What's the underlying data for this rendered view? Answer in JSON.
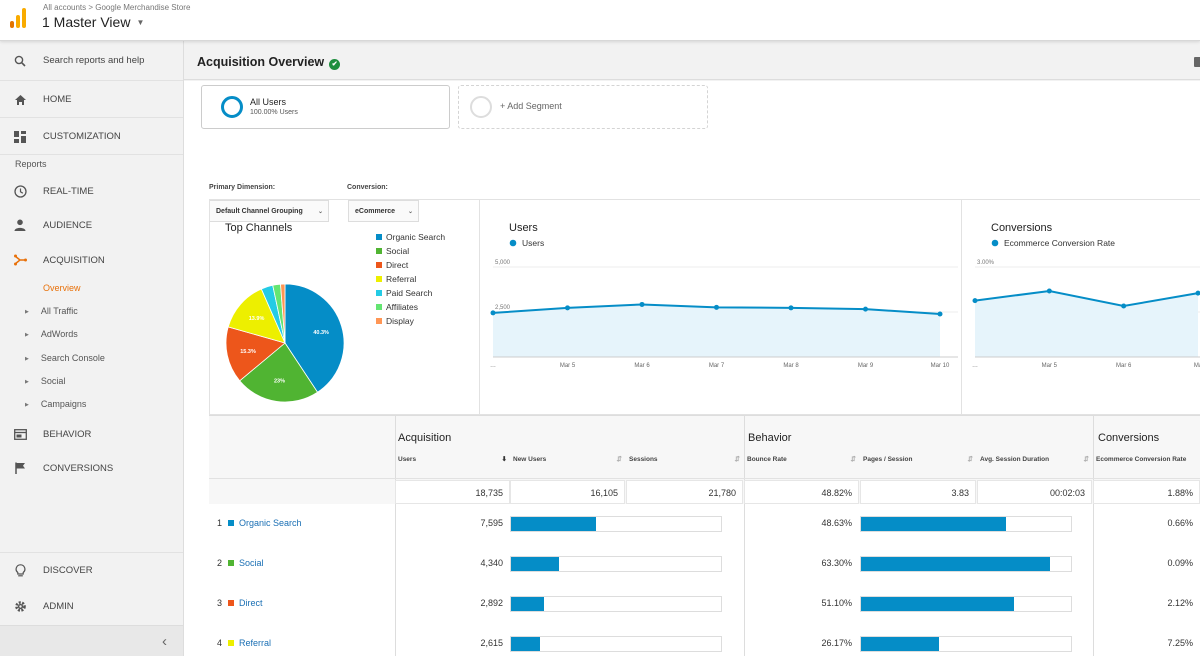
{
  "header": {
    "breadcrumb": "All accounts > Google Merchandise Store",
    "view": "1 Master View"
  },
  "sidebar": {
    "search": "Search reports and help",
    "home": "HOME",
    "customization": "CUSTOMIZATION",
    "reports_label": "Reports",
    "realtime": "REAL-TIME",
    "audience": "AUDIENCE",
    "acquisition": "ACQUISITION",
    "acq_items": [
      "Overview",
      "All Traffic",
      "AdWords",
      "Search Console",
      "Social",
      "Campaigns"
    ],
    "behavior": "BEHAVIOR",
    "conversions": "CONVERSIONS",
    "discover": "DISCOVER",
    "admin": "ADMIN",
    "collapse": "‹"
  },
  "page": {
    "title": "Acquisition Overview"
  },
  "segments": {
    "all_users": "All Users",
    "all_users_pct": "100.00% Users",
    "add_segment": "+ Add Segment"
  },
  "controls": {
    "primary_label": "Primary Dimension:",
    "primary_value": "Default Channel Grouping",
    "conversion_label": "Conversion:",
    "conversion_value": "eCommerce"
  },
  "colors": {
    "accent": "#058dc7",
    "organic": "#058dc7",
    "social": "#50b432",
    "direct": "#ed561b",
    "referral": "#edef00",
    "paid": "#24cbe5",
    "affiliates": "#64e572",
    "display": "#ff9655"
  },
  "chart_data": [
    {
      "type": "pie",
      "title": "Top Channels",
      "categories": [
        "Organic Search",
        "Social",
        "Direct",
        "Referral",
        "Paid Search",
        "Affiliates",
        "Display"
      ],
      "values": [
        40.3,
        23,
        15.3,
        13.9,
        3.2,
        2.1,
        1.2
      ],
      "data_labels": [
        "40.3%",
        "23%",
        "15.3%",
        "13.9%",
        "",
        "",
        ""
      ],
      "legend": "right"
    },
    {
      "type": "line",
      "title": "Users",
      "series": [
        {
          "name": "Users",
          "values": [
            2450,
            2730,
            2920,
            2760,
            2730,
            2660,
            2390
          ]
        }
      ],
      "x": [
        "…",
        "Mar 5",
        "Mar 6",
        "Mar 7",
        "Mar 8",
        "Mar 9",
        "Mar 10"
      ],
      "yticks": [
        "5,000",
        "2,500"
      ],
      "ylim": [
        0,
        5000
      ],
      "area": true
    },
    {
      "type": "line",
      "title": "Conversions",
      "series": [
        {
          "name": "Ecommerce Conversion Rate",
          "values": [
            1.88,
            2.2,
            1.7,
            2.13
          ]
        }
      ],
      "x": [
        "…",
        "Mar 5",
        "Mar 6",
        "Ma"
      ],
      "yticks": [
        "3.00%",
        "1.50%"
      ],
      "ylim": [
        0,
        3
      ],
      "area": true
    }
  ],
  "table": {
    "groups": [
      "Acquisition",
      "Behavior",
      "Conversions"
    ],
    "columns": [
      "Users",
      "New Users",
      "Sessions",
      "Bounce Rate",
      "Pages / Session",
      "Avg. Session Duration",
      "Ecommerce Conversion Rate"
    ],
    "totals": [
      "18,735",
      "16,105",
      "21,780",
      "48.82%",
      "3.83",
      "00:02:03",
      "1.88%"
    ],
    "rows": [
      {
        "n": "1",
        "channel": "Organic Search",
        "users": "7,595",
        "new_users_pct": 40.5,
        "bounce": "48.63%",
        "bounce_pct": 69,
        "conv": "0.66%"
      },
      {
        "n": "2",
        "channel": "Social",
        "users": "4,340",
        "new_users_pct": 23,
        "bounce": "63.30%",
        "bounce_pct": 90,
        "conv": "0.09%"
      },
      {
        "n": "3",
        "channel": "Direct",
        "users": "2,892",
        "new_users_pct": 15.5,
        "bounce": "51.10%",
        "bounce_pct": 73,
        "conv": "2.12%"
      },
      {
        "n": "4",
        "channel": "Referral",
        "users": "2,615",
        "new_users_pct": 14,
        "bounce": "26.17%",
        "bounce_pct": 37,
        "conv": "7.25%"
      }
    ]
  }
}
